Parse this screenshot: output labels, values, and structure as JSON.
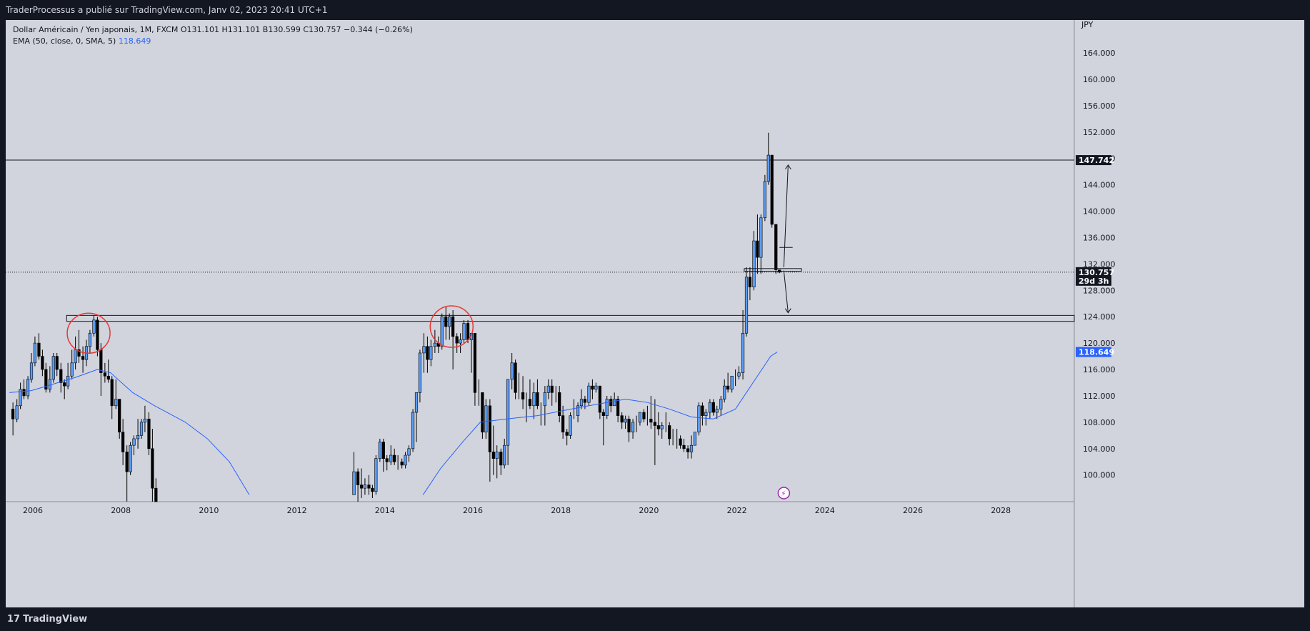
{
  "header": {
    "publisher_line": "TraderProcessus a publié sur TradingView.com, Janv 02, 2023 20:41 UTC+1"
  },
  "legend": {
    "symbol_line": "Dollar Américain / Yen japonais, 1M, FXCM  O131.101  H131.101  B130.599  C130.757  −0.344 (−0.26%)",
    "ema_label": "EMA (50, close, 0, SMA, 5)",
    "ema_value": "118.649"
  },
  "footer": {
    "brand": "TradingView"
  },
  "colors": {
    "background": "#d1d4dc",
    "up_candle": "#5b9cf6",
    "down_candle": "#000000",
    "ema": "#2962ff",
    "annotation": "#e53935"
  },
  "chart_data": {
    "type": "candlestick",
    "symbol": "USDJPY",
    "currency_label": "JPY",
    "price_axis_ticks": [
      "100.000",
      "104.000",
      "108.000",
      "112.000",
      "116.000",
      "120.000",
      "124.000",
      "128.000",
      "132.000",
      "136.000",
      "140.000",
      "144.000",
      "148.000",
      "152.000",
      "156.000",
      "160.000",
      "164.000"
    ],
    "time_axis_ticks": [
      "2006",
      "2008",
      "2010",
      "2012",
      "2014",
      "2016",
      "2018",
      "2020",
      "2022",
      "2024",
      "2026",
      "2028"
    ],
    "ylim": [
      97,
      168
    ],
    "price_labels": [
      {
        "text": "147.742",
        "value": 147.742,
        "style": "horizontal-line"
      },
      {
        "text": "130.757",
        "value": 130.757,
        "style": "last-price"
      },
      {
        "text": "29d 3h",
        "value": 130.757,
        "style": "countdown"
      },
      {
        "text": "118.649",
        "value": 118.649,
        "style": "ema"
      }
    ],
    "horizontal_lines": [
      147.742
    ],
    "zones": [
      {
        "from": 123.3,
        "to": 124.2
      }
    ],
    "ema_series": [
      [
        2005.5,
        112.5
      ],
      [
        2006.0,
        112.8
      ],
      [
        2006.5,
        113.8
      ],
      [
        2007.0,
        114.8
      ],
      [
        2007.5,
        116.0
      ],
      [
        2007.8,
        115.5
      ],
      [
        2008.3,
        112.5
      ],
      [
        2008.8,
        110.5
      ],
      [
        2009.5,
        108.0
      ],
      [
        2010.0,
        105.5
      ],
      [
        2010.5,
        102.0
      ],
      [
        2010.95,
        97.0
      ],
      [
        2014.9,
        97.0
      ],
      [
        2015.3,
        101.0
      ],
      [
        2015.8,
        105.0
      ],
      [
        2016.2,
        108.0
      ],
      [
        2016.8,
        108.5
      ],
      [
        2017.5,
        109.0
      ],
      [
        2018.5,
        110.3
      ],
      [
        2019.5,
        111.5
      ],
      [
        2020.0,
        111.0
      ],
      [
        2020.5,
        110.0
      ],
      [
        2021.0,
        108.8
      ],
      [
        2021.5,
        108.5
      ],
      [
        2022.0,
        110.0
      ],
      [
        2022.5,
        115.0
      ],
      [
        2022.8,
        118.0
      ],
      [
        2022.95,
        118.649
      ]
    ],
    "candles": [
      [
        2005.58,
        110.0,
        108.5,
        111.0,
        106.0
      ],
      [
        2005.67,
        108.5,
        110.5,
        111.5,
        108.0
      ],
      [
        2005.75,
        110.5,
        113.0,
        114.0,
        110.0
      ],
      [
        2005.83,
        113.0,
        112.0,
        114.5,
        111.5
      ],
      [
        2005.92,
        112.0,
        114.5,
        115.0,
        111.5
      ],
      [
        2006.0,
        114.5,
        117.0,
        118.5,
        114.0
      ],
      [
        2006.08,
        117.0,
        120.0,
        121.0,
        116.5
      ],
      [
        2006.17,
        120.0,
        118.0,
        121.5,
        117.5
      ],
      [
        2006.25,
        118.0,
        116.0,
        119.0,
        115.0
      ],
      [
        2006.33,
        116.0,
        113.0,
        117.0,
        112.5
      ],
      [
        2006.42,
        113.0,
        114.5,
        116.5,
        112.5
      ],
      [
        2006.5,
        114.5,
        118.0,
        118.5,
        114.0
      ],
      [
        2006.58,
        118.0,
        116.0,
        118.5,
        115.0
      ],
      [
        2006.67,
        116.0,
        114.0,
        117.0,
        112.5
      ],
      [
        2006.75,
        114.0,
        113.5,
        114.5,
        111.5
      ],
      [
        2006.83,
        113.5,
        115.0,
        117.0,
        113.0
      ],
      [
        2006.92,
        115.0,
        117.0,
        119.0,
        114.5
      ],
      [
        2007.0,
        117.0,
        119.0,
        121.0,
        116.0
      ],
      [
        2007.08,
        119.0,
        118.0,
        122.0,
        117.0
      ],
      [
        2007.17,
        118.0,
        117.5,
        119.5,
        115.5
      ],
      [
        2007.25,
        117.5,
        119.5,
        120.5,
        116.5
      ],
      [
        2007.33,
        119.5,
        121.5,
        122.0,
        118.5
      ],
      [
        2007.42,
        121.5,
        123.5,
        124.2,
        121.0
      ],
      [
        2007.5,
        123.5,
        119.0,
        124.0,
        118.0
      ],
      [
        2007.58,
        119.0,
        115.5,
        120.0,
        112.0
      ],
      [
        2007.67,
        115.5,
        115.0,
        117.0,
        114.0
      ],
      [
        2007.75,
        115.0,
        114.5,
        117.5,
        114.0
      ],
      [
        2007.83,
        114.5,
        110.5,
        115.0,
        108.5
      ],
      [
        2007.92,
        110.5,
        111.5,
        114.5,
        110.0
      ],
      [
        2008.0,
        111.5,
        106.5,
        111.5,
        105.5
      ],
      [
        2008.08,
        106.5,
        103.5,
        108.5,
        101.5
      ],
      [
        2008.17,
        103.5,
        100.5,
        104.5,
        96.0
      ],
      [
        2008.25,
        100.5,
        104.5,
        105.0,
        100.0
      ],
      [
        2008.33,
        104.5,
        105.5,
        106.0,
        103.0
      ],
      [
        2008.42,
        105.5,
        106.0,
        108.5,
        104.0
      ],
      [
        2008.5,
        106.0,
        108.0,
        108.5,
        105.5
      ],
      [
        2008.58,
        108.0,
        108.5,
        110.5,
        106.5
      ],
      [
        2008.67,
        108.5,
        104.0,
        109.5,
        103.0
      ],
      [
        2008.75,
        104.0,
        98.0,
        107.0,
        90.0
      ],
      [
        2008.83,
        98.0,
        95.0,
        99.5,
        93.0
      ],
      [
        2013.33,
        97.0,
        100.5,
        103.5,
        97.0
      ],
      [
        2013.42,
        100.5,
        98.5,
        101.0,
        94.0
      ],
      [
        2013.5,
        98.5,
        98.0,
        101.0,
        96.5
      ],
      [
        2013.58,
        98.0,
        98.5,
        99.5,
        97.0
      ],
      [
        2013.67,
        98.5,
        98.0,
        100.0,
        97.0
      ],
      [
        2013.75,
        98.0,
        97.5,
        98.5,
        96.5
      ],
      [
        2013.83,
        97.5,
        102.5,
        103.0,
        97.0
      ],
      [
        2013.92,
        102.5,
        105.0,
        105.5,
        102.0
      ],
      [
        2014.0,
        105.0,
        102.5,
        105.5,
        100.5
      ],
      [
        2014.08,
        102.5,
        102.0,
        103.0,
        100.7
      ],
      [
        2014.17,
        102.0,
        103.0,
        104.5,
        101.5
      ],
      [
        2014.25,
        103.0,
        102.0,
        104.0,
        101.5
      ],
      [
        2014.33,
        102.0,
        102.0,
        103.0,
        100.8
      ],
      [
        2014.42,
        102.0,
        101.5,
        102.5,
        101.0
      ],
      [
        2014.5,
        101.5,
        103.0,
        103.5,
        101.0
      ],
      [
        2014.58,
        103.0,
        104.0,
        104.5,
        102.0
      ],
      [
        2014.67,
        104.0,
        109.5,
        110.0,
        103.5
      ],
      [
        2014.75,
        109.5,
        112.5,
        112.5,
        105.0
      ],
      [
        2014.83,
        112.5,
        118.5,
        119.0,
        111.0
      ],
      [
        2014.92,
        118.5,
        119.5,
        121.5,
        115.5
      ],
      [
        2015.0,
        119.5,
        117.5,
        121.0,
        115.5
      ],
      [
        2015.08,
        117.5,
        119.5,
        120.5,
        116.5
      ],
      [
        2015.17,
        119.5,
        120.0,
        122.0,
        118.5
      ],
      [
        2015.25,
        120.0,
        119.5,
        121.0,
        118.5
      ],
      [
        2015.33,
        119.5,
        124.0,
        124.5,
        119.0
      ],
      [
        2015.42,
        124.0,
        122.5,
        125.5,
        120.5
      ],
      [
        2015.5,
        122.5,
        124.0,
        124.5,
        120.5
      ],
      [
        2015.58,
        124.0,
        121.0,
        125.0,
        116.0
      ],
      [
        2015.67,
        121.0,
        120.0,
        121.5,
        118.5
      ],
      [
        2015.75,
        120.0,
        120.5,
        121.5,
        118.5
      ],
      [
        2015.83,
        120.5,
        123.0,
        123.5,
        120.0
      ],
      [
        2015.92,
        123.0,
        120.5,
        123.5,
        120.0
      ],
      [
        2016.0,
        120.5,
        121.5,
        121.5,
        115.5
      ],
      [
        2016.08,
        121.5,
        112.5,
        121.5,
        110.5
      ],
      [
        2016.17,
        112.5,
        112.5,
        114.5,
        110.5
      ],
      [
        2016.25,
        112.5,
        106.5,
        112.5,
        105.5
      ],
      [
        2016.33,
        106.5,
        110.5,
        111.5,
        105.5
      ],
      [
        2016.42,
        110.5,
        103.5,
        111.5,
        99.0
      ],
      [
        2016.5,
        103.5,
        102.5,
        107.5,
        100.0
      ],
      [
        2016.58,
        102.5,
        103.5,
        104.5,
        99.5
      ],
      [
        2016.67,
        103.5,
        101.5,
        104.0,
        100.0
      ],
      [
        2016.75,
        101.5,
        104.5,
        105.5,
        101.0
      ],
      [
        2016.83,
        104.5,
        114.5,
        114.5,
        101.5
      ],
      [
        2016.92,
        114.5,
        117.0,
        118.5,
        113.0
      ],
      [
        2017.0,
        117.0,
        112.5,
        117.5,
        111.5
      ],
      [
        2017.08,
        112.5,
        112.5,
        115.5,
        111.5
      ],
      [
        2017.17,
        112.5,
        111.5,
        115.0,
        110.0
      ],
      [
        2017.25,
        111.5,
        111.5,
        112.5,
        108.0
      ],
      [
        2017.33,
        111.5,
        110.5,
        114.5,
        110.0
      ],
      [
        2017.42,
        110.5,
        112.5,
        114.0,
        108.5
      ],
      [
        2017.5,
        112.5,
        110.5,
        114.5,
        110.0
      ],
      [
        2017.58,
        110.5,
        110.5,
        111.0,
        107.5
      ],
      [
        2017.67,
        110.5,
        112.5,
        113.5,
        107.5
      ],
      [
        2017.75,
        112.5,
        113.5,
        114.5,
        111.5
      ],
      [
        2017.83,
        113.5,
        112.5,
        114.5,
        110.5
      ],
      [
        2017.92,
        112.5,
        112.5,
        113.5,
        111.0
      ],
      [
        2018.0,
        112.5,
        109.0,
        113.5,
        108.0
      ],
      [
        2018.08,
        109.0,
        106.5,
        110.5,
        105.5
      ],
      [
        2018.17,
        106.5,
        106.0,
        107.0,
        104.5
      ],
      [
        2018.25,
        106.0,
        109.0,
        109.5,
        105.5
      ],
      [
        2018.33,
        109.0,
        109.0,
        111.5,
        108.5
      ],
      [
        2018.42,
        109.0,
        110.5,
        111.0,
        108.0
      ],
      [
        2018.5,
        110.5,
        111.5,
        113.0,
        110.0
      ],
      [
        2018.58,
        111.5,
        111.0,
        112.0,
        110.0
      ],
      [
        2018.67,
        111.0,
        113.5,
        114.0,
        110.5
      ],
      [
        2018.75,
        113.5,
        113.0,
        114.5,
        111.5
      ],
      [
        2018.83,
        113.0,
        113.5,
        114.0,
        112.5
      ],
      [
        2018.92,
        113.5,
        109.5,
        113.5,
        108.5
      ],
      [
        2019.0,
        109.5,
        109.0,
        110.0,
        104.5
      ],
      [
        2019.08,
        109.0,
        111.5,
        112.0,
        108.5
      ],
      [
        2019.17,
        111.5,
        110.5,
        112.0,
        109.5
      ],
      [
        2019.25,
        110.5,
        111.5,
        112.5,
        110.5
      ],
      [
        2019.33,
        111.5,
        109.0,
        112.0,
        108.0
      ],
      [
        2019.42,
        109.0,
        108.0,
        109.5,
        107.0
      ],
      [
        2019.5,
        108.0,
        108.5,
        109.0,
        107.0
      ],
      [
        2019.58,
        108.5,
        106.5,
        109.0,
        105.0
      ],
      [
        2019.67,
        106.5,
        108.0,
        108.5,
        105.5
      ],
      [
        2019.75,
        108.0,
        108.0,
        109.0,
        106.5
      ],
      [
        2019.83,
        108.0,
        109.5,
        109.5,
        107.5
      ],
      [
        2019.92,
        109.5,
        108.5,
        110.0,
        108.0
      ],
      [
        2020.0,
        108.5,
        108.5,
        110.5,
        107.5
      ],
      [
        2020.08,
        108.5,
        108.0,
        112.0,
        107.0
      ],
      [
        2020.17,
        108.0,
        107.5,
        111.5,
        101.5
      ],
      [
        2020.25,
        107.5,
        107.0,
        109.5,
        106.0
      ],
      [
        2020.33,
        107.0,
        107.5,
        108.0,
        105.5
      ],
      [
        2020.42,
        107.5,
        107.5,
        109.5,
        106.5
      ],
      [
        2020.5,
        107.5,
        105.5,
        108.0,
        104.5
      ],
      [
        2020.58,
        105.5,
        105.5,
        107.0,
        104.5
      ],
      [
        2020.67,
        105.5,
        105.5,
        107.0,
        104.0
      ],
      [
        2020.75,
        105.5,
        104.5,
        106.0,
        104.0
      ],
      [
        2020.83,
        104.5,
        104.0,
        105.5,
        103.5
      ],
      [
        2020.92,
        104.0,
        103.5,
        104.5,
        102.5
      ],
      [
        2021.0,
        103.5,
        104.5,
        106.0,
        102.5
      ],
      [
        2021.08,
        104.5,
        106.5,
        106.5,
        104.5
      ],
      [
        2021.17,
        106.5,
        110.5,
        111.0,
        106.0
      ],
      [
        2021.25,
        110.5,
        109.0,
        111.0,
        107.5
      ],
      [
        2021.33,
        109.0,
        109.5,
        110.0,
        107.5
      ],
      [
        2021.42,
        109.5,
        111.0,
        111.5,
        108.5
      ],
      [
        2021.5,
        111.0,
        109.5,
        111.5,
        109.0
      ],
      [
        2021.58,
        109.5,
        110.0,
        110.5,
        108.5
      ],
      [
        2021.67,
        110.0,
        111.5,
        112.0,
        109.0
      ],
      [
        2021.75,
        111.5,
        113.5,
        114.5,
        111.0
      ],
      [
        2021.83,
        113.5,
        113.0,
        115.5,
        112.5
      ],
      [
        2021.92,
        113.0,
        115.0,
        115.0,
        112.5
      ],
      [
        2022.0,
        115.0,
        115.0,
        116.0,
        113.5
      ],
      [
        2022.08,
        115.0,
        115.5,
        116.5,
        114.5
      ],
      [
        2022.17,
        115.5,
        121.5,
        125.0,
        114.5
      ],
      [
        2022.25,
        121.5,
        130.0,
        131.5,
        121.0
      ],
      [
        2022.33,
        130.0,
        128.5,
        131.5,
        126.5
      ],
      [
        2022.42,
        128.5,
        135.5,
        137.0,
        128.0
      ],
      [
        2022.5,
        135.5,
        133.0,
        139.5,
        130.5
      ],
      [
        2022.58,
        133.0,
        139.0,
        139.5,
        130.5
      ],
      [
        2022.67,
        139.0,
        144.5,
        145.5,
        138.5
      ],
      [
        2022.75,
        144.5,
        148.5,
        151.9,
        144.0
      ],
      [
        2022.83,
        148.5,
        138.0,
        148.5,
        137.5
      ],
      [
        2022.92,
        138.0,
        131.1,
        138.0,
        130.5
      ],
      [
        2023.0,
        131.1,
        130.757,
        131.101,
        130.599
      ]
    ]
  }
}
